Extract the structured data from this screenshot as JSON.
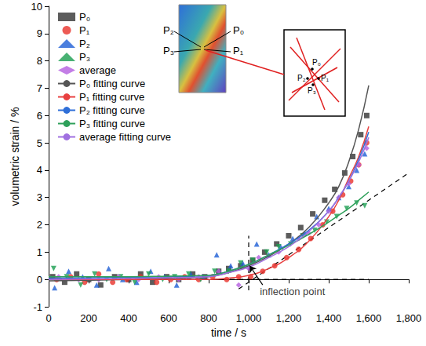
{
  "chart_data": {
    "type": "scatter",
    "xlabel": "time / s",
    "ylabel": "volumetric strain / %",
    "xlim": [
      0,
      1800
    ],
    "xticks": [
      0,
      200,
      400,
      600,
      800,
      1000,
      1200,
      1400,
      1600,
      1800
    ],
    "ylim": [
      -1,
      10
    ],
    "yticks": [
      -1,
      0,
      1,
      2,
      3,
      4,
      5,
      6,
      7,
      8,
      9,
      10
    ],
    "grid": false,
    "legend": "upper left",
    "series": [
      {
        "name": "P₀",
        "type": "scatter",
        "marker": "square",
        "color": "#333333",
        "x": [
          20,
          80,
          140,
          200,
          260,
          330,
          400,
          460,
          520,
          590,
          650,
          720,
          780,
          850,
          900,
          960,
          1020,
          1080,
          1140,
          1200,
          1260,
          1320,
          1380,
          1430,
          1480,
          1520,
          1560,
          1590
        ],
        "values": [
          0.1,
          -0.1,
          0.2,
          0.0,
          -0.2,
          0.1,
          0.0,
          0.2,
          -0.1,
          0.1,
          0.0,
          0.2,
          0.1,
          0.3,
          0.4,
          0.5,
          0.7,
          1.0,
          1.3,
          1.6,
          1.9,
          2.4,
          2.9,
          3.3,
          3.9,
          4.5,
          5.3,
          6.0
        ]
      },
      {
        "name": "P₁",
        "type": "scatter",
        "marker": "circle",
        "color": "#e8322a",
        "x": [
          40,
          110,
          180,
          250,
          320,
          390,
          460,
          540,
          610,
          680,
          750,
          820,
          890,
          950,
          1010,
          1070,
          1130,
          1190,
          1250,
          1310,
          1370,
          1420,
          1470,
          1510,
          1550,
          1590
        ],
        "values": [
          0.0,
          0.1,
          -0.1,
          0.2,
          -0.1,
          0.0,
          0.1,
          -0.1,
          0.0,
          0.1,
          0.0,
          0.1,
          0.0,
          0.1,
          0.1,
          0.3,
          0.5,
          0.8,
          1.1,
          1.5,
          2.0,
          2.5,
          3.1,
          3.6,
          4.2,
          5.0
        ]
      },
      {
        "name": "P₂",
        "type": "scatter",
        "marker": "triangle",
        "color": "#1f5fd6",
        "x": [
          30,
          100,
          170,
          240,
          300,
          370,
          440,
          510,
          580,
          640,
          710,
          770,
          840,
          910,
          970,
          1040,
          1100,
          1160,
          1220,
          1280,
          1340,
          1400,
          1450,
          1500,
          1540,
          1580
        ],
        "values": [
          -0.3,
          0.3,
          0.1,
          -0.2,
          0.4,
          0.0,
          -0.1,
          0.3,
          0.1,
          -0.2,
          0.2,
          0.1,
          0.9,
          0.5,
          0.6,
          1.3,
          0.9,
          1.2,
          1.5,
          1.7,
          2.3,
          2.6,
          3.0,
          3.4,
          4.0,
          4.6
        ]
      },
      {
        "name": "P₃",
        "type": "scatter",
        "marker": "triangle-down",
        "color": "#1a9e50",
        "x": [
          25,
          90,
          160,
          230,
          290,
          360,
          430,
          500,
          570,
          630,
          700,
          760,
          830,
          900,
          960,
          1020,
          1090,
          1150,
          1210,
          1270,
          1330,
          1390,
          1440,
          1490,
          1540,
          1580
        ],
        "values": [
          0.4,
          0.1,
          -0.2,
          0.2,
          0.0,
          0.1,
          -0.1,
          0.2,
          0.0,
          0.1,
          0.2,
          0.0,
          0.3,
          0.3,
          0.6,
          0.7,
          1.0,
          1.2,
          1.3,
          1.6,
          1.8,
          2.1,
          2.3,
          2.6,
          2.8,
          2.7
        ]
      },
      {
        "name": "average",
        "type": "scatter",
        "marker": "diamond",
        "color": "#b45ee0",
        "x": [
          50,
          150,
          250,
          350,
          450,
          550,
          650,
          750,
          850,
          950,
          1000,
          1050,
          1150,
          1250,
          1300,
          1350,
          1400,
          1450,
          1500,
          1550,
          1590
        ],
        "values": [
          0.1,
          0.0,
          0.0,
          0.1,
          0.0,
          0.1,
          0.0,
          0.1,
          0.3,
          -0.2,
          0.4,
          0.8,
          1.0,
          1.5,
          1.7,
          2.0,
          2.5,
          3.0,
          3.5,
          4.2,
          4.8
        ]
      },
      {
        "name": "P₀ fitting curve",
        "type": "line",
        "line_style": "solid",
        "color": "#555555",
        "x": [
          0,
          200,
          400,
          600,
          800,
          900,
          1000,
          1100,
          1200,
          1300,
          1400,
          1450,
          1500,
          1550,
          1600
        ],
        "values": [
          -0.05,
          -0.03,
          0.0,
          0.03,
          0.1,
          0.25,
          0.5,
          0.85,
          1.3,
          1.9,
          2.8,
          3.4,
          4.3,
          5.5,
          7.1
        ]
      },
      {
        "name": "P₁ fitting curve",
        "type": "line",
        "line_style": "solid",
        "color": "#e84040",
        "x": [
          0,
          200,
          400,
          600,
          800,
          900,
          1000,
          1100,
          1200,
          1300,
          1400,
          1450,
          1500,
          1550,
          1600
        ],
        "values": [
          0.0,
          0.0,
          0.0,
          0.0,
          0.0,
          0.05,
          0.15,
          0.4,
          0.8,
          1.4,
          2.3,
          2.9,
          3.7,
          4.5,
          5.6
        ]
      },
      {
        "name": "P₂ fitting curve",
        "type": "line",
        "line_style": "solid",
        "color": "#2f6fd8",
        "x": [
          0,
          200,
          400,
          600,
          800,
          900,
          1000,
          1100,
          1200,
          1300,
          1400,
          1450,
          1500,
          1550,
          1600
        ],
        "values": [
          0.05,
          0.06,
          0.08,
          0.1,
          0.15,
          0.3,
          0.55,
          0.9,
          1.3,
          1.8,
          2.5,
          3.0,
          3.6,
          4.4,
          5.4
        ]
      },
      {
        "name": "P₃ fitting curve",
        "type": "line",
        "line_style": "solid",
        "color": "#2ea05a",
        "x": [
          0,
          200,
          400,
          600,
          800,
          900,
          1000,
          1100,
          1200,
          1300,
          1400,
          1450,
          1500,
          1550,
          1600
        ],
        "values": [
          0.1,
          0.1,
          0.1,
          0.12,
          0.15,
          0.3,
          0.55,
          0.9,
          1.25,
          1.65,
          2.1,
          2.35,
          2.6,
          2.9,
          3.2
        ]
      },
      {
        "name": "average fitting curve",
        "type": "line",
        "line_style": "solid",
        "color": "#a070e0",
        "x": [
          0,
          200,
          400,
          600,
          800,
          900,
          1000,
          1100,
          1200,
          1300,
          1400,
          1450,
          1500,
          1550,
          1600
        ],
        "values": [
          0.0,
          0.02,
          0.04,
          0.06,
          0.1,
          0.25,
          0.45,
          0.8,
          1.2,
          1.75,
          2.5,
          3.0,
          3.6,
          4.3,
          5.2
        ]
      }
    ],
    "reference_lines": [
      {
        "type": "line",
        "line_style": "dashed",
        "color": "#000000",
        "x": [
          0,
          1600
        ],
        "values": [
          0,
          0
        ]
      },
      {
        "type": "line",
        "line_style": "dashed",
        "color": "#000000",
        "x": [
          950,
          1800
        ],
        "values": [
          -0.35,
          3.9
        ]
      },
      {
        "type": "line",
        "line_style": "dashed",
        "color": "#000000",
        "x": [
          1000,
          1000
        ],
        "values": [
          -0.4,
          1.6
        ]
      }
    ],
    "annotations": [
      {
        "text": "inflection point",
        "x": 1040,
        "y": -0.45,
        "arrow_from": [
          1070,
          -0.2
        ],
        "arrow_to": [
          1005,
          0.5
        ]
      }
    ],
    "inset": {
      "labels": [
        "P₀",
        "P₁",
        "P₂",
        "P₃"
      ]
    }
  }
}
